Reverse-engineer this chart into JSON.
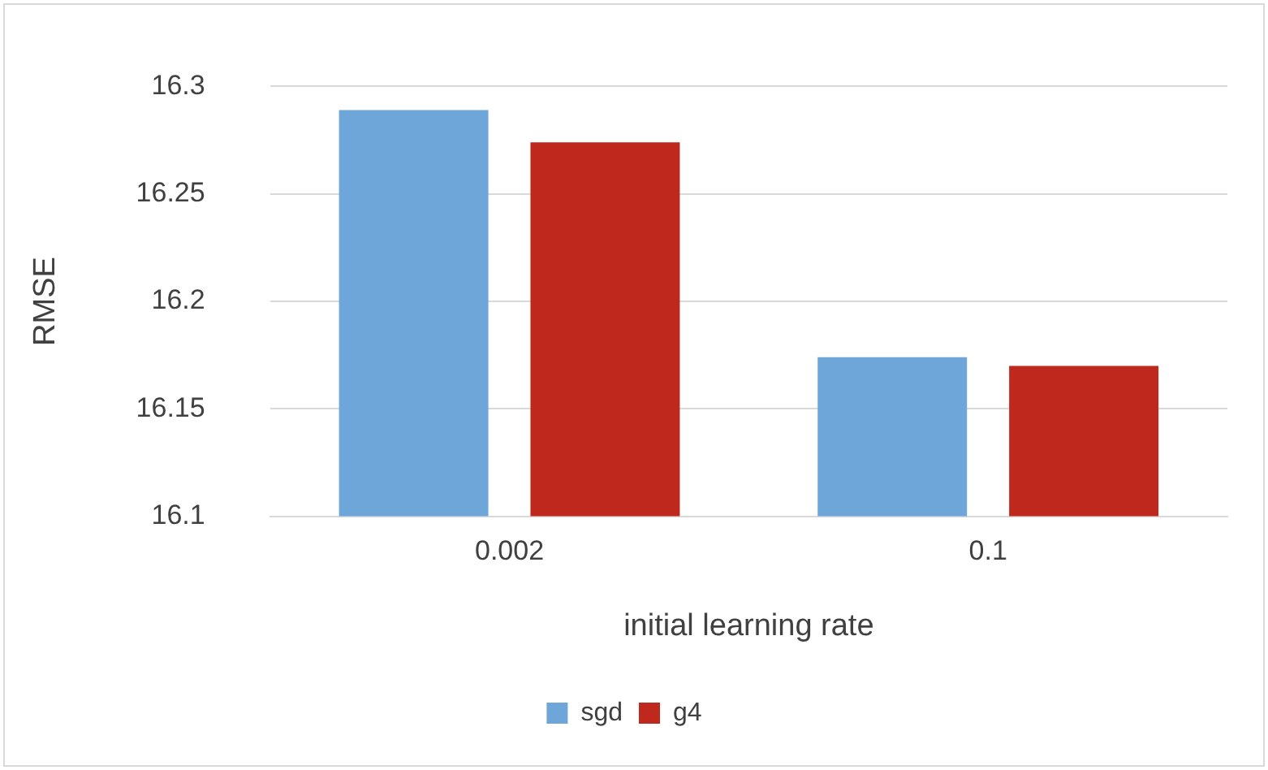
{
  "chart_data": {
    "type": "bar",
    "xlabel": "initial learning rate",
    "ylabel": "RMSE",
    "categories": [
      "0.002",
      "0.1"
    ],
    "series": [
      {
        "name": "sgd",
        "color": "#6fa6da",
        "values": [
          16.289,
          16.174
        ]
      },
      {
        "name": "g4",
        "color": "#be281d",
        "values": [
          16.274,
          16.17
        ]
      }
    ],
    "ylim": [
      16.1,
      16.3
    ],
    "yticks": [
      16.1,
      16.15,
      16.2,
      16.25,
      16.3
    ],
    "grid": "y",
    "legend": "bottom"
  }
}
